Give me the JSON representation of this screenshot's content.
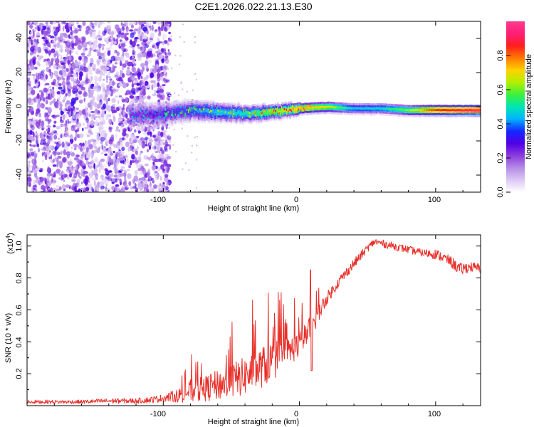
{
  "title": "C2E1.2026.022.21.13.E30",
  "chart_data": [
    {
      "type": "heatmap",
      "name": "spectrogram",
      "xlabel": "Height of straight line (km)",
      "ylabel": "Frequency (Hz)",
      "xlim": [
        -200,
        133
      ],
      "ylim": [
        -50,
        50
      ],
      "x_ticks": [
        -100,
        0,
        100
      ],
      "x_tick_labels": [
        "-100",
        "0",
        "100"
      ],
      "y_ticks": [
        -40,
        -20,
        0,
        20,
        40
      ],
      "y_tick_labels": [
        "-40",
        "-20",
        "0",
        "20",
        "40"
      ],
      "colorbar": {
        "label": "Normalized spectral amplitude",
        "range": [
          0,
          1
        ],
        "ticks": [
          0.0,
          0.2,
          0.4,
          0.6,
          0.8
        ],
        "tick_labels": [
          "0.0",
          "0.2",
          "0.4",
          "0.6",
          "0.8"
        ],
        "colormap": [
          "#ffffff",
          "#dcc8f5",
          "#b48ce6",
          "#8c3cdc",
          "#5000e6",
          "#1428ff",
          "#00b4ff",
          "#00e6b4",
          "#3cf03c",
          "#b4f000",
          "#ffd200",
          "#ff7800",
          "#ff1e1e",
          "#ff1e78",
          "#ff3c8c"
        ]
      },
      "ridge": {
        "x": [
          -120,
          -100,
          -80,
          -60,
          -40,
          -20,
          0,
          20,
          40,
          60,
          80,
          100,
          133
        ],
        "frequency": [
          -5,
          -4,
          -2,
          -3,
          -4,
          -3,
          -1,
          0,
          -1,
          -1,
          -2,
          -2,
          -2
        ],
        "amplitude": [
          0.25,
          0.3,
          0.38,
          0.45,
          0.5,
          0.62,
          0.75,
          0.68,
          0.45,
          0.48,
          0.62,
          0.85,
          0.98
        ]
      }
    },
    {
      "type": "line",
      "name": "snr",
      "xlabel": "Height of straight line (km)",
      "ylabel": "SNR (10 * v/v)",
      "y_multiplier_label": "(x10",
      "y_multiplier_exponent": "4",
      "y_multiplier_close": ")",
      "xlim": [
        -200,
        133
      ],
      "ylim": [
        0,
        1.07
      ],
      "x_ticks": [
        -100,
        0,
        100
      ],
      "x_tick_labels": [
        "-100",
        "0",
        "100"
      ],
      "y_ticks": [
        0.2,
        0.4,
        0.6,
        0.8,
        1.0
      ],
      "y_tick_labels": [
        "0.2",
        "0.4",
        "0.6",
        "0.8",
        "1.0"
      ],
      "line_color": "#e8302a",
      "series": [
        {
          "name": "SNR",
          "x": [
            -200,
            -180,
            -160,
            -140,
            -120,
            -110,
            -100,
            -90,
            -80,
            -70,
            -60,
            -50,
            -40,
            -30,
            -20,
            -10,
            0,
            5,
            10,
            15,
            20,
            30,
            40,
            50,
            55,
            60,
            70,
            80,
            90,
            100,
            110,
            118,
            125,
            133
          ],
          "base": [
            0.02,
            0.02,
            0.02,
            0.025,
            0.025,
            0.03,
            0.04,
            0.05,
            0.07,
            0.08,
            0.1,
            0.12,
            0.15,
            0.19,
            0.24,
            0.3,
            0.36,
            0.42,
            0.5,
            0.58,
            0.66,
            0.78,
            0.88,
            0.98,
            1.02,
            1.01,
            0.99,
            0.97,
            0.95,
            0.94,
            0.9,
            0.84,
            0.86,
            0.85
          ],
          "spread": [
            0.015,
            0.015,
            0.015,
            0.02,
            0.02,
            0.025,
            0.03,
            0.05,
            0.09,
            0.1,
            0.12,
            0.14,
            0.15,
            0.16,
            0.16,
            0.12,
            0.1,
            0.1,
            0.09,
            0.07,
            0.05,
            0.04,
            0.04,
            0.03,
            0.03,
            0.03,
            0.03,
            0.03,
            0.03,
            0.04,
            0.04,
            0.05,
            0.04,
            0.04
          ]
        }
      ]
    }
  ]
}
